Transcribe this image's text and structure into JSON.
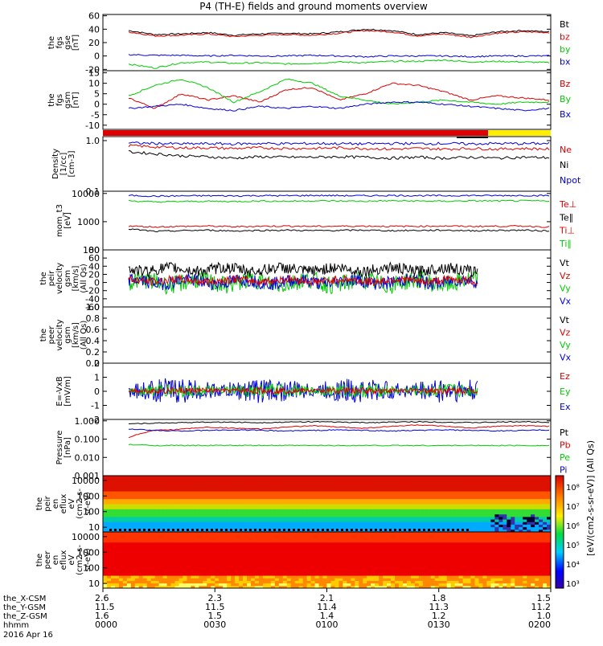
{
  "title": "P4 (TH-E) fields and ground moments overview",
  "chart_data": [
    {
      "id": "fgs_gse",
      "type": "line",
      "ylabel": [
        "the",
        "fgs",
        "gse",
        "[nT]"
      ],
      "yticks": [
        "60",
        "40",
        "20",
        "0",
        "-20"
      ],
      "ylim": [
        -22,
        62
      ],
      "legend": [
        {
          "name": "Bt",
          "color": "#000000"
        },
        {
          "name": "bz",
          "color": "#dd0000"
        },
        {
          "name": "by",
          "color": "#00cc00"
        },
        {
          "name": "bx",
          "color": "#0000dd"
        }
      ],
      "series_trend": {
        "Bt": [
          38,
          32,
          33,
          35,
          31,
          33,
          34,
          33,
          36,
          40,
          38,
          32,
          35,
          30,
          36,
          38,
          36
        ],
        "bz": [
          36,
          30,
          31,
          33,
          29,
          31,
          32,
          31,
          34,
          38,
          36,
          30,
          33,
          28,
          34,
          36,
          35
        ],
        "by": [
          -12,
          -18,
          -10,
          -9,
          -11,
          -10,
          -12,
          -11,
          -9,
          -10,
          -8,
          -8,
          -6,
          -9,
          -8,
          -9,
          -10
        ],
        "bx": [
          2,
          1,
          1,
          0,
          1,
          0,
          0,
          1,
          0,
          -1,
          0,
          0,
          0,
          -1,
          0,
          0,
          0
        ]
      }
    },
    {
      "id": "fgs_gsm",
      "type": "line",
      "ylabel": [
        "the",
        "fgs",
        "gsm",
        "[nT]"
      ],
      "yticks": [
        "15",
        "10",
        "5",
        "0",
        "-5",
        "-10"
      ],
      "ylim": [
        -12,
        16
      ],
      "legend": [
        {
          "name": "Bz",
          "color": "#dd0000"
        },
        {
          "name": "By",
          "color": "#00cc00"
        },
        {
          "name": "Bx",
          "color": "#0000dd"
        }
      ],
      "series_trend": {
        "Bz": [
          3,
          -2,
          5,
          2,
          4,
          1,
          7,
          8,
          2,
          5,
          10,
          9,
          6,
          2,
          4,
          3,
          2
        ],
        "By": [
          4,
          9,
          12,
          8,
          1,
          6,
          12,
          10,
          4,
          2,
          0,
          1,
          2,
          1,
          0,
          1,
          1
        ],
        "Bx": [
          -2,
          -1,
          0,
          -2,
          -3,
          -1,
          -2,
          -1,
          -2,
          0,
          1,
          1,
          0,
          -1,
          -2,
          -3,
          -2
        ]
      },
      "status_bar": [
        {
          "until_fraction": 0.86,
          "color": "#dd0000"
        },
        {
          "until_fraction": 1.0,
          "color": "#ffee00"
        }
      ]
    },
    {
      "id": "density",
      "type": "line",
      "scale": "log",
      "ylabel": [
        "Density",
        "[1/cc]",
        "[cm-3]"
      ],
      "yticks": [
        "1.0",
        "0.1"
      ],
      "ylim": [
        0.1,
        1.2
      ],
      "legend": [
        {
          "name": "Ne",
          "color": "#dd0000"
        },
        {
          "name": "Ni",
          "color": "#000000"
        },
        {
          "name": "Npot",
          "color": "#0000dd"
        }
      ],
      "series_trend": {
        "Ne": [
          0.8,
          0.75,
          0.72,
          0.72,
          0.7,
          0.72,
          0.7,
          0.7,
          0.72,
          0.7,
          0.68,
          0.7,
          0.68,
          0.7,
          0.68,
          0.7,
          0.68
        ],
        "Ni": [
          0.6,
          0.55,
          0.5,
          0.48,
          0.45,
          0.48,
          0.47,
          0.47,
          0.48,
          0.47,
          0.45,
          0.47,
          0.45,
          0.47,
          0.45,
          0.47,
          0.46
        ],
        "Npot": [
          0.9,
          0.88,
          0.86,
          0.87,
          0.86,
          0.88,
          0.87,
          0.88,
          0.87,
          0.86,
          0.88,
          0.87,
          0.88,
          0.86,
          0.88,
          0.87,
          0.88
        ]
      }
    },
    {
      "id": "mom_t3",
      "type": "line",
      "scale": "log",
      "ylabel": [
        "mom_t3",
        "[eV]"
      ],
      "yticks": [
        "10000",
        "1000",
        "100"
      ],
      "ylim": [
        100,
        12000
      ],
      "legend": [
        {
          "name": "Te⊥",
          "color": "#dd0000"
        },
        {
          "name": "Te∥",
          "color": "#000000"
        },
        {
          "name": "Ti⊥",
          "color": "#dd0000"
        },
        {
          "name": "Ti∥",
          "color": "#00cc00"
        }
      ],
      "series_trend": {
        "blue": [
          8500,
          8000,
          8200,
          8300,
          8200,
          8400,
          8300,
          8500,
          8400,
          8300,
          8500,
          8400,
          8300,
          8500,
          8400,
          8500,
          8400
        ],
        "green": [
          5500,
          5000,
          5200,
          5300,
          5200,
          5400,
          5300,
          5500,
          5400,
          5300,
          5500,
          5400,
          5300,
          5500,
          5400,
          5500,
          5400
        ],
        "red": [
          700,
          650,
          680,
          700,
          660,
          690,
          700,
          680,
          690,
          700,
          680,
          690,
          700,
          680,
          690,
          700,
          650
        ],
        "black": [
          550,
          450,
          480,
          500,
          470,
          490,
          500,
          480,
          490,
          500,
          480,
          490,
          500,
          480,
          490,
          500,
          470
        ]
      }
    },
    {
      "id": "peir_velocity",
      "type": "line",
      "ylabel": [
        "the",
        "peir",
        "velocity",
        "gsm",
        "[km/s]",
        "(All Qs)"
      ],
      "yticks": [
        "80",
        "60",
        "40",
        "20",
        "0",
        "-20",
        "-40",
        "-60"
      ],
      "ylim": [
        -60,
        80
      ],
      "data_end_fraction": 0.84,
      "legend": [
        {
          "name": "Vt",
          "color": "#000000"
        },
        {
          "name": "Vz",
          "color": "#dd0000"
        },
        {
          "name": "Vy",
          "color": "#00cc00"
        },
        {
          "name": "Vx",
          "color": "#0000dd"
        }
      ]
    },
    {
      "id": "peer_velocity",
      "type": "line",
      "ylabel": [
        "the",
        "peer",
        "velocity",
        "gsm",
        "[km/s]",
        "(All Qs)"
      ],
      "yticks": [
        "1.0",
        "0.8",
        "0.6",
        "0.4",
        "0.2",
        "0.0"
      ],
      "ylim": [
        0,
        1
      ],
      "legend": [
        {
          "name": "Vt",
          "color": "#000000"
        },
        {
          "name": "Vz",
          "color": "#dd0000"
        },
        {
          "name": "Vy",
          "color": "#00cc00"
        },
        {
          "name": "Vx",
          "color": "#0000dd"
        }
      ]
    },
    {
      "id": "e_field",
      "type": "line",
      "ylabel": [
        "E=-VxB",
        "[mV/m]"
      ],
      "yticks": [
        "2",
        "1",
        "0",
        "-1",
        "-2"
      ],
      "ylim": [
        -2,
        2
      ],
      "data_end_fraction": 0.84,
      "legend": [
        {
          "name": "Ez",
          "color": "#dd0000"
        },
        {
          "name": "Ey",
          "color": "#00cc00"
        },
        {
          "name": "Ex",
          "color": "#0000dd"
        }
      ]
    },
    {
      "id": "pressure",
      "type": "line",
      "scale": "log",
      "ylabel": [
        "Pressure",
        "[nPa]"
      ],
      "yticks": [
        "1.000",
        "0.100",
        "0.010",
        "0.001"
      ],
      "ylim": [
        0.001,
        1.2
      ],
      "legend": [
        {
          "name": "Pt",
          "color": "#000000"
        },
        {
          "name": "Pb",
          "color": "#dd0000"
        },
        {
          "name": "Pe",
          "color": "#00cc00"
        },
        {
          "name": "Pi",
          "color": "#0000dd"
        }
      ],
      "series_trend": {
        "Pt": [
          0.7,
          0.75,
          0.8,
          0.85,
          0.85,
          0.8,
          0.85,
          0.9,
          0.85,
          0.8,
          0.85,
          0.9,
          0.85,
          0.8,
          0.85,
          0.9,
          0.85
        ],
        "Pb": [
          0.12,
          0.3,
          0.35,
          0.45,
          0.4,
          0.35,
          0.45,
          0.55,
          0.45,
          0.4,
          0.5,
          0.6,
          0.5,
          0.4,
          0.5,
          0.55,
          0.5
        ],
        "Pe": [
          0.05,
          0.045,
          0.045,
          0.045,
          0.045,
          0.045,
          0.045,
          0.045,
          0.045,
          0.045,
          0.045,
          0.045,
          0.045,
          0.045,
          0.045,
          0.045,
          0.045
        ],
        "Pi": [
          0.35,
          0.3,
          0.28,
          0.3,
          0.32,
          0.3,
          0.28,
          0.3,
          0.32,
          0.3,
          0.28,
          0.3,
          0.32,
          0.3,
          0.28,
          0.3,
          0.32
        ]
      }
    },
    {
      "id": "peir_en_eflux",
      "type": "heatmap",
      "ylabel": [
        "the",
        "peir",
        "en",
        "eflux",
        "eV",
        "(cm2-s-",
        "sr-eV)"
      ],
      "yticks": [
        "10000",
        "1000",
        "100",
        "10"
      ]
    },
    {
      "id": "peer_en_eflux",
      "type": "heatmap",
      "ylabel": [
        "the",
        "peer",
        "en",
        "eflux",
        "eV",
        "(cm2-s-",
        "sr-eV)"
      ],
      "yticks": [
        "10000",
        "1000",
        "100",
        "10"
      ]
    }
  ],
  "colorbar": {
    "label": "[eV/(cm2-s-sr-eV)] (All Qs)",
    "ticks": [
      "10⁸",
      "10⁷",
      "10⁶",
      "10⁵",
      "10⁴",
      "10³"
    ]
  },
  "x_axis": {
    "rows": [
      {
        "label": "the_X-CSM",
        "values": [
          "2.6",
          "2.3",
          "2.1",
          "1.8",
          "1.5"
        ]
      },
      {
        "label": "the_Y-GSM",
        "values": [
          "11.5",
          "11.5",
          "11.4",
          "11.3",
          "11.2"
        ]
      },
      {
        "label": "the_Z-GSM",
        "values": [
          "1.6",
          "1.5",
          "1.4",
          "1.2",
          "1.0"
        ]
      },
      {
        "label": "hhmm",
        "values": [
          "0000",
          "0030",
          "0100",
          "0130",
          "0200"
        ]
      }
    ],
    "date": "2016 Apr 16"
  }
}
